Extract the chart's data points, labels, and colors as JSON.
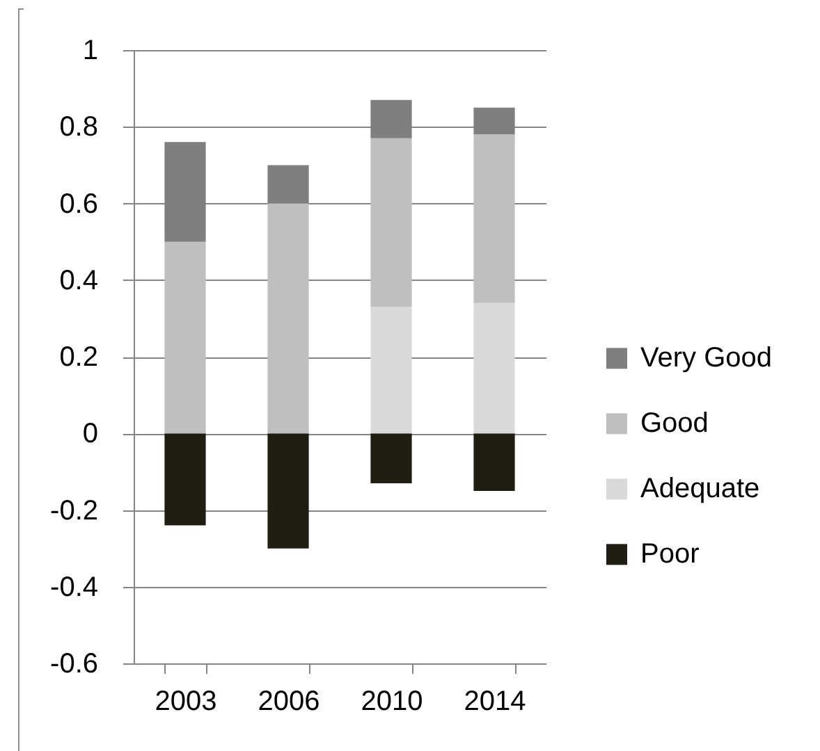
{
  "chart_data": {
    "type": "bar",
    "stacked": true,
    "categories": [
      "2003",
      "2006",
      "2010",
      "2014"
    ],
    "series": [
      {
        "name": "Poor",
        "color": "#201d12",
        "values": [
          -0.24,
          -0.3,
          -0.13,
          -0.15
        ]
      },
      {
        "name": "Adequate",
        "color": "#d9d9d9",
        "values": [
          null,
          null,
          0.33,
          0.34
        ]
      },
      {
        "name": "Good",
        "color": "#bfbfbf",
        "values": [
          0.5,
          0.6,
          0.44,
          0.44
        ]
      },
      {
        "name": "Very Good",
        "color": "#7f7f7f",
        "values": [
          0.26,
          0.1,
          0.1,
          0.07
        ]
      }
    ],
    "ylim": [
      -0.6,
      1
    ],
    "yticks": [
      -0.6,
      -0.4,
      -0.2,
      0,
      0.2,
      0.4,
      0.6,
      0.8,
      1
    ],
    "grid": "y",
    "legend": "right"
  }
}
